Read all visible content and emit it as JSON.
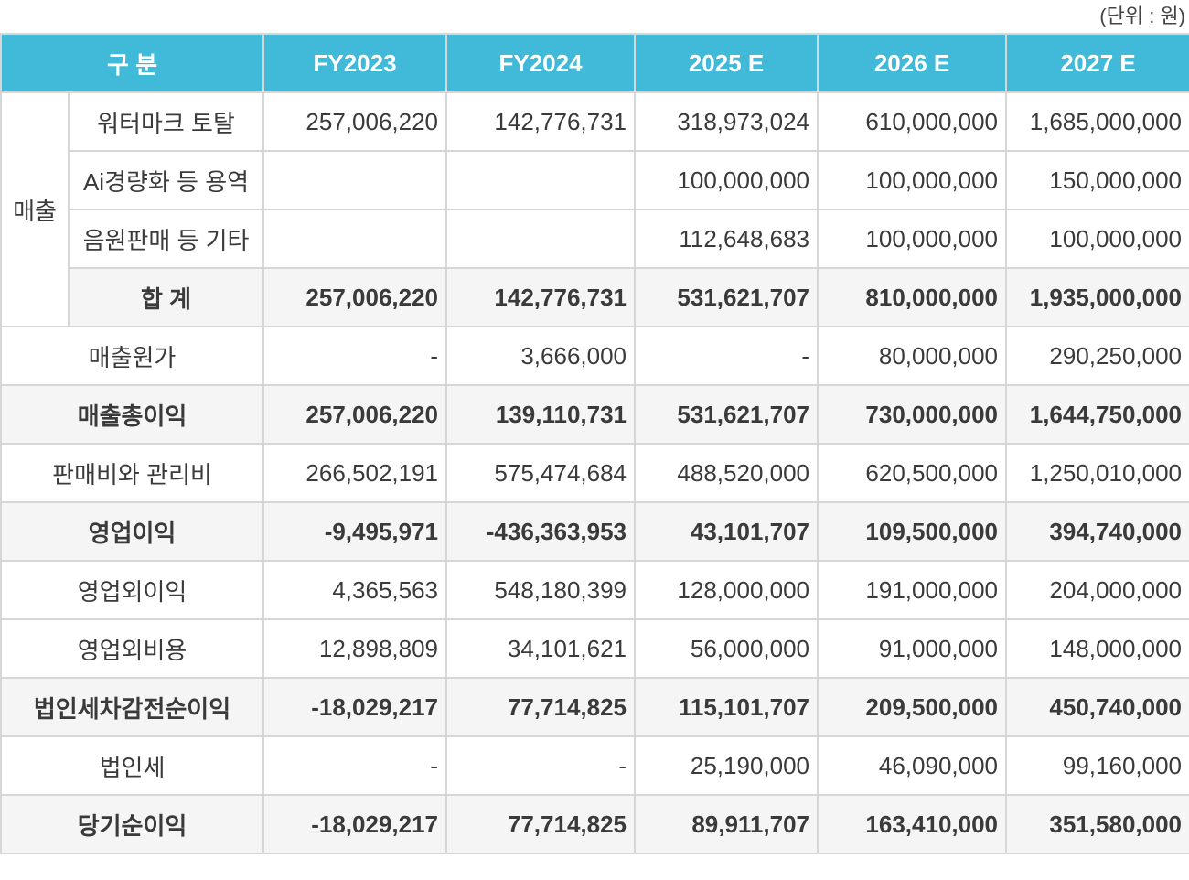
{
  "unit_note": "(단위 : 원)",
  "header": [
    "구 분",
    "FY2023",
    "FY2024",
    "2025 E",
    "2026 E",
    "2027 E"
  ],
  "colors": {
    "header_bg": "#40bad8",
    "bold_row_bg": "#f5f5f5",
    "border": "#d6d6d6"
  },
  "revenue_group": {
    "label": "매출",
    "rows": [
      {
        "label": "워터마크 토탈",
        "values": [
          "257,006,220",
          "142,776,731",
          "318,973,024",
          "610,000,000",
          "1,685,000,000"
        ]
      },
      {
        "label": "Ai경량화 등 용역",
        "values": [
          "",
          "",
          "100,000,000",
          "100,000,000",
          "150,000,000"
        ]
      },
      {
        "label": "음원판매 등 기타",
        "values": [
          "",
          "",
          "112,648,683",
          "100,000,000",
          "100,000,000"
        ]
      },
      {
        "label": "합 계",
        "bold": true,
        "values": [
          "257,006,220",
          "142,776,731",
          "531,621,707",
          "810,000,000",
          "1,935,000,000"
        ]
      }
    ]
  },
  "rows": [
    {
      "label": "매출원가",
      "bold": false,
      "values": [
        "-",
        "3,666,000",
        "-",
        "80,000,000",
        "290,250,000"
      ]
    },
    {
      "label": "매출총이익",
      "bold": true,
      "values": [
        "257,006,220",
        "139,110,731",
        "531,621,707",
        "730,000,000",
        "1,644,750,000"
      ]
    },
    {
      "label": "판매비와 관리비",
      "bold": false,
      "values": [
        "266,502,191",
        "575,474,684",
        "488,520,000",
        "620,500,000",
        "1,250,010,000"
      ]
    },
    {
      "label": "영업이익",
      "bold": true,
      "values": [
        "-9,495,971",
        "-436,363,953",
        "43,101,707",
        "109,500,000",
        "394,740,000"
      ]
    },
    {
      "label": "영업외이익",
      "bold": false,
      "values": [
        "4,365,563",
        "548,180,399",
        "128,000,000",
        "191,000,000",
        "204,000,000"
      ]
    },
    {
      "label": "영업외비용",
      "bold": false,
      "values": [
        "12,898,809",
        "34,101,621",
        "56,000,000",
        "91,000,000",
        "148,000,000"
      ]
    },
    {
      "label": "법인세차감전순이익",
      "bold": true,
      "values": [
        "-18,029,217",
        "77,714,825",
        "115,101,707",
        "209,500,000",
        "450,740,000"
      ]
    },
    {
      "label": "법인세",
      "bold": false,
      "values": [
        "-",
        "-",
        "25,190,000",
        "46,090,000",
        "99,160,000"
      ]
    },
    {
      "label": "당기순이익",
      "bold": true,
      "values": [
        "-18,029,217",
        "77,714,825",
        "89,911,707",
        "163,410,000",
        "351,580,000"
      ]
    }
  ]
}
